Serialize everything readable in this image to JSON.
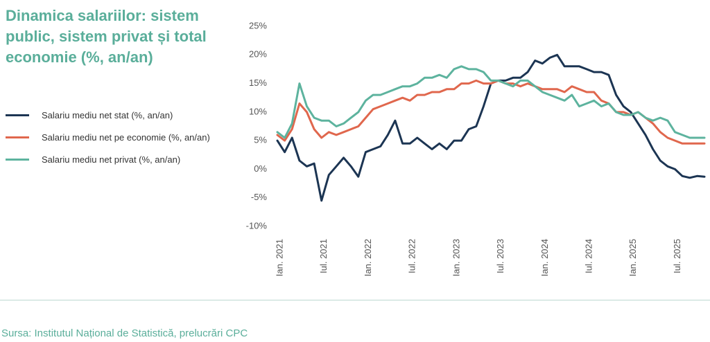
{
  "chart_data": {
    "type": "line",
    "title": "Dinamica salariilor: sistem public, sistem privat și total economie (%, an/an)",
    "source": "Sursa: Institutul Național de Statistică, prelucrări CPC",
    "categories": [
      "Ian. 2021",
      null,
      null,
      null,
      null,
      null,
      "Iul. 2021",
      null,
      null,
      null,
      null,
      null,
      "Ian. 2022",
      null,
      null,
      null,
      null,
      null,
      "Iul. 2022",
      null,
      null,
      null,
      null,
      null,
      "Ian. 2023",
      null,
      null,
      null,
      null,
      null,
      "Iul. 2023",
      null,
      null,
      null,
      null,
      null,
      "Ian. 2024",
      null,
      null,
      null,
      null,
      null,
      "Iul. 2024",
      null,
      null,
      null,
      null,
      null,
      "Ian. 2025",
      null,
      null,
      null,
      null,
      null,
      "Iul. 2025",
      null,
      null,
      null,
      null
    ],
    "series": [
      {
        "name": "Salariu mediu net stat (%, an/an)",
        "color": "#1c3553",
        "values": [
          5,
          3,
          5.5,
          1.5,
          0.5,
          1,
          -5.5,
          -1,
          0.5,
          2,
          0.5,
          -1.3,
          3,
          3.5,
          4,
          6,
          8.5,
          4.5,
          4.5,
          5.5,
          4.5,
          3.5,
          4.5,
          3.5,
          5,
          5,
          7,
          7.5,
          11,
          15,
          15.5,
          15.5,
          16,
          16,
          17,
          19,
          18.5,
          19.5,
          20,
          18,
          18,
          18,
          17.5,
          17,
          17,
          16.5,
          13,
          11,
          10,
          8,
          6,
          3.5,
          1.5,
          0.5,
          0,
          -1.2,
          -1.5,
          -1.2,
          -1.3
        ]
      },
      {
        "name": "Salariu mediu net pe economie (%, an/an)",
        "color": "#e0674d",
        "values": [
          6,
          5,
          7,
          11.5,
          10,
          7,
          5.5,
          6.5,
          6,
          6.5,
          7,
          7.5,
          9,
          10.5,
          11,
          11.5,
          12,
          12.5,
          12,
          13,
          13,
          13.5,
          13.5,
          14,
          14,
          15,
          15,
          15.5,
          15,
          15,
          15.5,
          15,
          15,
          14.5,
          15,
          14.5,
          14,
          14,
          14,
          13.5,
          14.5,
          14,
          13.5,
          13.5,
          12,
          11.5,
          10,
          10,
          9.5,
          10,
          9,
          8,
          6.5,
          5.5,
          5,
          4.5,
          4.5,
          4.5,
          4.5
        ]
      },
      {
        "name": "Salariu mediu net privat (%, an/an)",
        "color": "#5db39e",
        "values": [
          6.5,
          5.5,
          8,
          15,
          11,
          9,
          8.5,
          8.5,
          7.5,
          8,
          9,
          10,
          12,
          13,
          13,
          13.5,
          14,
          14.5,
          14.5,
          15,
          16,
          16,
          16.5,
          16,
          17.5,
          18,
          17.5,
          17.5,
          17,
          15.5,
          15.5,
          15,
          14.5,
          15.5,
          15.5,
          14.5,
          13.5,
          13,
          12.5,
          12,
          13,
          11,
          11.5,
          12,
          11,
          11.5,
          10,
          9.5,
          9.5,
          10,
          9,
          8.5,
          9,
          8.5,
          6.5,
          6,
          5.5,
          5.5,
          5.5
        ]
      }
    ],
    "ylim": [
      -10,
      25
    ],
    "yticks": [
      {
        "value": -10,
        "label": "-10%"
      },
      {
        "value": -5,
        "label": "-5%"
      },
      {
        "value": 0,
        "label": "0%"
      },
      {
        "value": 5,
        "label": "5%"
      },
      {
        "value": 10,
        "label": "10%"
      },
      {
        "value": 15,
        "label": "15%"
      },
      {
        "value": 20,
        "label": "20%"
      },
      {
        "value": 25,
        "label": "25%"
      }
    ]
  }
}
